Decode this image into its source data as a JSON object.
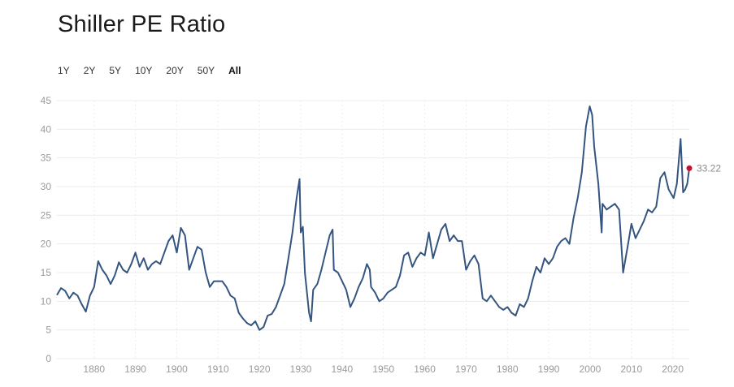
{
  "header": {
    "title": "Shiller PE Ratio"
  },
  "ranges": [
    {
      "label": "1Y",
      "active": false
    },
    {
      "label": "2Y",
      "active": false
    },
    {
      "label": "5Y",
      "active": false
    },
    {
      "label": "10Y",
      "active": false
    },
    {
      "label": "20Y",
      "active": false
    },
    {
      "label": "50Y",
      "active": false
    },
    {
      "label": "All",
      "active": true
    }
  ],
  "colors": {
    "line": "#34557f",
    "marker": "#c8102e",
    "grid": "#ececec"
  },
  "chart_data": {
    "type": "line",
    "title": "Shiller PE Ratio",
    "xlabel": "",
    "ylabel": "",
    "xlim": [
      1871,
      2024
    ],
    "ylim": [
      0,
      45
    ],
    "x_ticks": [
      1880,
      1890,
      1900,
      1910,
      1920,
      1930,
      1940,
      1950,
      1960,
      1970,
      1980,
      1990,
      2000,
      2010,
      2020
    ],
    "y_ticks": [
      0,
      5,
      10,
      15,
      20,
      25,
      30,
      35,
      40,
      45
    ],
    "grid": true,
    "last_value_label": "33.22",
    "series": [
      {
        "x": [
          1871,
          1872,
          1873,
          1874,
          1875,
          1876,
          1877,
          1878,
          1879,
          1880,
          1881,
          1882,
          1883,
          1884,
          1885,
          1886,
          1887,
          1888,
          1889,
          1890,
          1891,
          1892,
          1893,
          1894,
          1895,
          1896,
          1897,
          1898,
          1899,
          1900,
          1901,
          1902,
          1903,
          1904,
          1905,
          1906,
          1907,
          1908,
          1909,
          1910,
          1911,
          1912,
          1913,
          1914,
          1915,
          1916,
          1917,
          1918,
          1919,
          1920,
          1921,
          1922,
          1923,
          1924,
          1925,
          1926,
          1927,
          1928,
          1929,
          1929.7,
          1930,
          1930.5,
          1931,
          1932,
          1932.5,
          1933,
          1934,
          1935,
          1936,
          1937,
          1937.7,
          1938,
          1939,
          1940,
          1941,
          1942,
          1943,
          1944,
          1945,
          1946,
          1946.7,
          1947,
          1948,
          1949,
          1950,
          1951,
          1952,
          1953,
          1954,
          1955,
          1956,
          1957,
          1958,
          1959,
          1960,
          1961,
          1962,
          1963,
          1964,
          1965,
          1966,
          1967,
          1968,
          1969,
          1970,
          1971,
          1972,
          1973,
          1974,
          1975,
          1976,
          1977,
          1978,
          1979,
          1980,
          1981,
          1982,
          1983,
          1984,
          1985,
          1986,
          1987,
          1988,
          1989,
          1990,
          1991,
          1992,
          1993,
          1994,
          1995,
          1996,
          1997,
          1998,
          1999,
          1999.9,
          2000.5,
          2001,
          2002,
          2002.8,
          2003,
          2004,
          2005,
          2006,
          2007,
          2008,
          2009.2,
          2010,
          2011,
          2012,
          2013,
          2014,
          2015,
          2016,
          2017,
          2018,
          2019,
          2020.2,
          2021,
          2021.9,
          2022.5,
          2023,
          2023.5,
          2024
        ],
        "y": [
          11.1,
          12.3,
          11.8,
          10.5,
          11.5,
          11.0,
          9.5,
          8.2,
          11.0,
          12.5,
          17.0,
          15.5,
          14.5,
          13.0,
          14.5,
          16.8,
          15.5,
          15.0,
          16.5,
          18.5,
          16.0,
          17.5,
          15.5,
          16.5,
          17.0,
          16.5,
          18.5,
          20.5,
          21.5,
          18.5,
          22.8,
          21.5,
          15.5,
          17.5,
          19.5,
          19.0,
          15.0,
          12.5,
          13.5,
          13.5,
          13.5,
          12.5,
          11.0,
          10.5,
          8.0,
          7.0,
          6.2,
          5.8,
          6.5,
          5.0,
          5.5,
          7.5,
          7.8,
          9.0,
          11.0,
          13.0,
          17.5,
          22.0,
          28.0,
          31.3,
          22.0,
          23.0,
          15.0,
          8.0,
          6.5,
          12.0,
          13.0,
          15.5,
          18.5,
          21.5,
          22.5,
          15.5,
          15.0,
          13.5,
          12.0,
          9.0,
          10.5,
          12.5,
          14.0,
          16.5,
          15.5,
          12.5,
          11.5,
          10.0,
          10.5,
          11.5,
          12.0,
          12.5,
          14.5,
          18.0,
          18.5,
          16.0,
          17.5,
          18.5,
          18.0,
          22.0,
          17.5,
          20.0,
          22.5,
          23.5,
          20.5,
          21.5,
          20.5,
          20.5,
          15.5,
          17.0,
          18.0,
          16.5,
          10.5,
          10.0,
          11.0,
          10.0,
          9.0,
          8.5,
          9.0,
          8.0,
          7.5,
          9.5,
          9.0,
          10.5,
          13.5,
          16.0,
          15.0,
          17.5,
          16.5,
          17.5,
          19.5,
          20.5,
          21.0,
          20.0,
          24.5,
          28.0,
          32.5,
          40.5,
          44.0,
          42.5,
          37.0,
          30.5,
          22.0,
          27.0,
          26.0,
          26.5,
          27.0,
          26.0,
          15.0,
          20.0,
          23.5,
          21.0,
          22.5,
          24.0,
          26.0,
          25.5,
          26.5,
          31.5,
          32.5,
          29.5,
          28.0,
          30.5,
          38.3,
          29.0,
          29.5,
          30.5,
          33.2
        ]
      }
    ]
  }
}
